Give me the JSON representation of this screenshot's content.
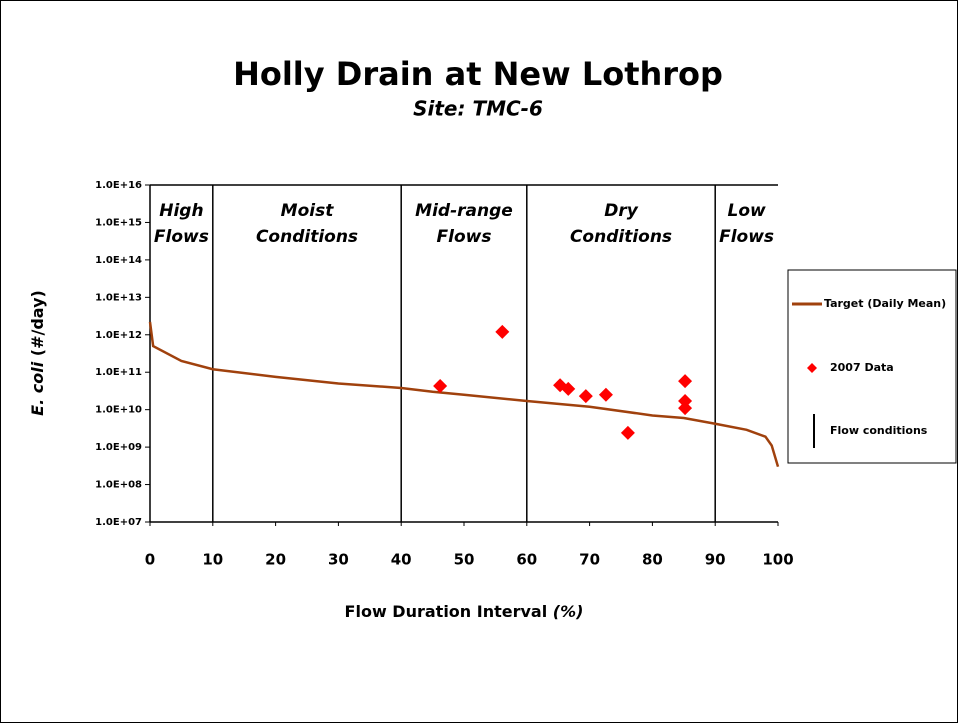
{
  "chart_data": {
    "type": "line",
    "title": "Holly Drain at New Lothrop",
    "subtitle": "Site:  TMC-6",
    "x_label": "Flow Duration Interval",
    "x_label_unit": "(%)",
    "y_label_species": "E. coli",
    "y_label_unit": "(#/day)",
    "log_y": true,
    "xlim": [
      0,
      100
    ],
    "xticks": [
      0,
      10,
      20,
      30,
      40,
      50,
      60,
      70,
      80,
      90,
      100
    ],
    "ylim": [
      10000000.0,
      1e+16
    ],
    "yticks": [
      {
        "value": 10000000.0,
        "label": "1.0E+07"
      },
      {
        "value": 100000000.0,
        "label": "1.0E+08"
      },
      {
        "value": 1000000000.0,
        "label": "1.0E+09"
      },
      {
        "value": 10000000000.0,
        "label": "1.0E+10"
      },
      {
        "value": 100000000000.0,
        "label": "1.0E+11"
      },
      {
        "value": 1000000000000.0,
        "label": "1.0E+12"
      },
      {
        "value": 10000000000000.0,
        "label": "1.0E+13"
      },
      {
        "value": 100000000000000.0,
        "label": "1.0E+14"
      },
      {
        "value": 1000000000000000.0,
        "label": "1.0E+15"
      },
      {
        "value": 1e+16,
        "label": "1.0E+16"
      }
    ],
    "series": [
      {
        "name": "Target (Daily Mean)",
        "marker": "line",
        "color": "#a0410d",
        "x": [
          0,
          0.5,
          5,
          10,
          20,
          30,
          40,
          45,
          50,
          60,
          70,
          80,
          85,
          90,
          95,
          98,
          99,
          100
        ],
        "values": [
          2200000000000.0,
          500000000000.0,
          200000000000.0,
          120000000000.0,
          75000000000.0,
          50000000000.0,
          38000000000.0,
          30000000000.0,
          25000000000.0,
          17000000000.0,
          12000000000.0,
          7000000000.0,
          6000000000.0,
          4200000000.0,
          2900000000.0,
          1900000000.0,
          1100000000.0,
          300000000.0
        ]
      },
      {
        "name": "2007 Data",
        "marker": "diamond",
        "color": "#ff0000",
        "x": [
          46.2,
          56.1,
          65.3,
          66.6,
          69.4,
          72.6,
          76.1,
          85.2,
          85.2,
          85.2
        ],
        "values": [
          43000000000.0,
          1200000000000.0,
          45000000000.0,
          36000000000.0,
          23000000000.0,
          25000000000.0,
          2400000000.0,
          58000000000.0,
          17000000000.0,
          11000000000.0
        ]
      }
    ],
    "flow_conditions": {
      "name": "Flow conditions",
      "color": "#000000",
      "x": [
        10,
        40,
        60,
        90
      ]
    },
    "zone_labels": [
      [
        "High",
        "Flows"
      ],
      [
        "Moist",
        "Conditions"
      ],
      [
        "Mid-range",
        "Flows"
      ],
      [
        "Dry",
        "Conditions"
      ],
      [
        "Low",
        "Flows"
      ]
    ]
  }
}
